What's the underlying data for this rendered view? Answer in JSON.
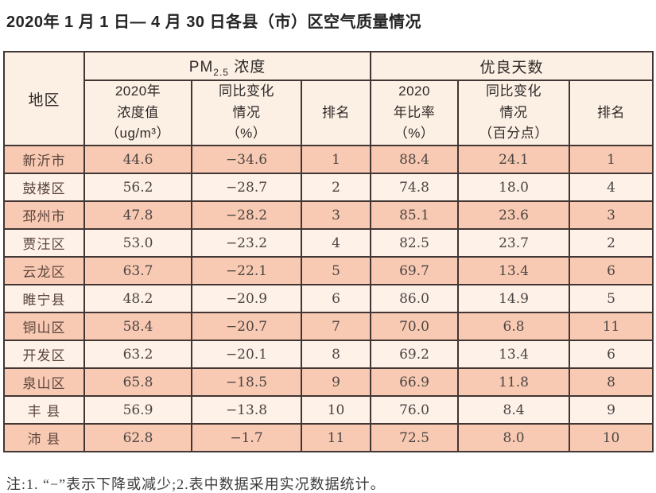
{
  "title": "2020年 1 月 1 日— 4 月 30 日各县（市）区空气质量情况",
  "table": {
    "header": {
      "region": "地区",
      "pm_group": {
        "prefix": "PM",
        "sub": "2.5",
        "suffix": " 浓度"
      },
      "days_group": "优良天数",
      "sub_headers": {
        "pm_value": "2020年\n浓度值\n（ug/m³）",
        "pm_change": "同比变化\n情况\n（%）",
        "pm_rank": "排名",
        "days_ratio": "2020\n年比率\n（%）",
        "days_change": "同比变化\n情况\n（百分点）",
        "days_rank": "排名"
      }
    },
    "rows": [
      {
        "region": "新沂市",
        "pm_value": "44.6",
        "pm_change": "−34.6",
        "pm_rank": "1",
        "days_ratio": "88.4",
        "days_change": "24.1",
        "days_rank": "1"
      },
      {
        "region": "鼓楼区",
        "pm_value": "56.2",
        "pm_change": "−28.7",
        "pm_rank": "2",
        "days_ratio": "74.8",
        "days_change": "18.0",
        "days_rank": "4"
      },
      {
        "region": "邳州市",
        "pm_value": "47.8",
        "pm_change": "−28.2",
        "pm_rank": "3",
        "days_ratio": "85.1",
        "days_change": "23.6",
        "days_rank": "3"
      },
      {
        "region": "贾汪区",
        "pm_value": "53.0",
        "pm_change": "−23.2",
        "pm_rank": "4",
        "days_ratio": "82.5",
        "days_change": "23.7",
        "days_rank": "2"
      },
      {
        "region": "云龙区",
        "pm_value": "63.7",
        "pm_change": "−22.1",
        "pm_rank": "5",
        "days_ratio": "69.7",
        "days_change": "13.4",
        "days_rank": "6"
      },
      {
        "region": "睢宁县",
        "pm_value": "48.2",
        "pm_change": "−20.9",
        "pm_rank": "6",
        "days_ratio": "86.0",
        "days_change": "14.9",
        "days_rank": "5"
      },
      {
        "region": "铜山区",
        "pm_value": "58.4",
        "pm_change": "−20.7",
        "pm_rank": "7",
        "days_ratio": "70.0",
        "days_change": "6.8",
        "days_rank": "11"
      },
      {
        "region": "开发区",
        "pm_value": "63.2",
        "pm_change": "−20.1",
        "pm_rank": "8",
        "days_ratio": "69.2",
        "days_change": "13.4",
        "days_rank": "6"
      },
      {
        "region": "泉山区",
        "pm_value": "65.8",
        "pm_change": "−18.5",
        "pm_rank": "9",
        "days_ratio": "66.9",
        "days_change": "11.8",
        "days_rank": "8"
      },
      {
        "region": "丰 县",
        "pm_value": "56.9",
        "pm_change": "−13.8",
        "pm_rank": "10",
        "days_ratio": "76.0",
        "days_change": "8.4",
        "days_rank": "9"
      },
      {
        "region": "沛 县",
        "pm_value": "62.8",
        "pm_change": "−1.7",
        "pm_rank": "11",
        "days_ratio": "72.5",
        "days_change": "8.0",
        "days_rank": "10"
      }
    ]
  },
  "note": "注:1. “−”表示下降或减少;2.表中数据采用实况数据统计。",
  "colors": {
    "row_odd": "#f9cab3",
    "row_even": "#fdf1e8",
    "header_bg": "#fcefe3",
    "border": "#413633"
  }
}
